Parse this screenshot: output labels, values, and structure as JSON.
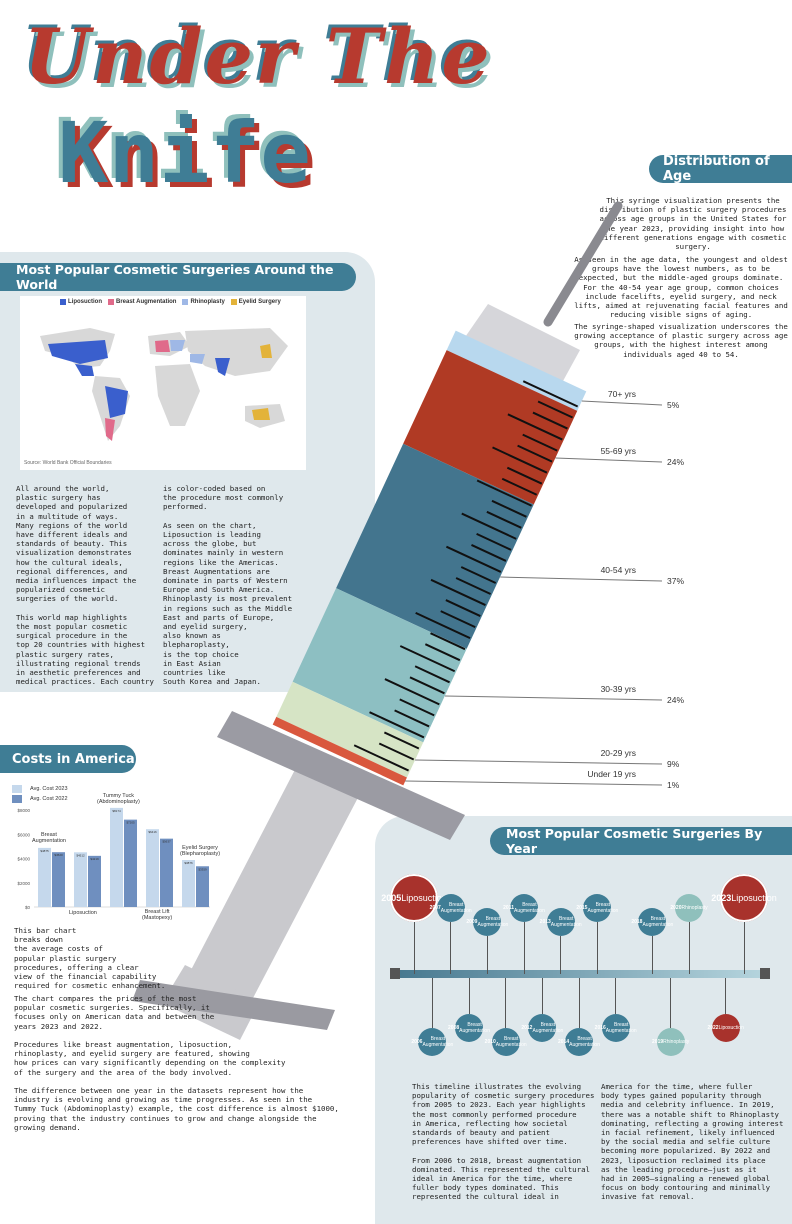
{
  "title": {
    "line1": "Under The",
    "line2": "Knife"
  },
  "colors": {
    "teal": "#3f7d95",
    "red": "#b73a2f",
    "mint": "#8fc0bc",
    "panel": "#dfe8ec"
  },
  "age": {
    "header": "Distribution of Age",
    "desc1": "This syringe visualization presents the distribution of plastic surgery procedures across age groups in the United States for the year 2023, providing insight into how different generations engage with cosmetic surgery.",
    "desc2": "As seen in the age data, the youngest and oldest groups have the lowest numbers, as to be expected, but the middle-aged groups dominate. For the 40-54 year age group, common choices include facelifts, eyelid surgery, and neck lifts, aimed at rejuvenating facial features and reducing visible signs of aging.",
    "desc3": "The syringe-shaped visualization underscores the growing acceptance of plastic surgery across age groups, with the highest interest among individuals aged 40 to 54.",
    "groups": [
      {
        "label": "70+ yrs",
        "pct": "5%",
        "value": 5,
        "color": "#b8d8ee"
      },
      {
        "label": "55-69 yrs",
        "pct": "24%",
        "value": 24,
        "color": "#b03a24"
      },
      {
        "label": "40-54 yrs",
        "pct": "37%",
        "value": 37,
        "color": "#43758e"
      },
      {
        "label": "30-39 yrs",
        "pct": "24%",
        "value": 24,
        "color": "#8dbfc2"
      },
      {
        "label": "20-29 yrs",
        "pct": "9%",
        "value": 9,
        "color": "#d6e4c5"
      },
      {
        "label": "Under 19 yrs",
        "pct": "1%",
        "value": 1,
        "color": "#d9583e"
      }
    ]
  },
  "world": {
    "header": "Most Popular Cosmetic Surgeries Around the World",
    "legend": [
      {
        "label": "Liposuction",
        "color": "#3a5fcd"
      },
      {
        "label": "Breast Augmentation",
        "color": "#e06a8a"
      },
      {
        "label": "Rhinoplasty",
        "color": "#9fb8e6"
      },
      {
        "label": "Eyelid Surgery",
        "color": "#e3b33a"
      }
    ],
    "source": "Source: World Bank Official Boundaries",
    "col1": "All around the world,\nplastic surgery has\ndeveloped and popularized\nin a multitude of ways.\nMany regions of the world\nhave different ideals and\nstandards of beauty. This\nvisualization demonstrates\nhow the cultural ideals,\nregional differences, and\nmedia influences impact the\npopularized cosmetic\nsurgeries of the world.\n\nThis world map highlights\nthe most popular cosmetic\nsurgical procedure in the\ntop 20 countries with highest\nplastic surgery rates,\nillustrating regional trends\nin aesthetic preferences and\nmedical practices. Each country",
    "col2": "is color-coded based on\nthe procedure most commonly\nperformed.\n\nAs seen on the chart,\nLiposuction is leading\nacross the globe, but\ndominates mainly in western\nregions like the Americas.\nBreast Augmentations are\ndominate in parts of Western\nEurope and South America.\nRhinoplasty is most prevalent\nin regions such as the Middle\nEast and parts of Europe,\nand eyelid surgery,\nalso known as\nblepharoplasty,\nis the top choice\nin East Asian\ncountries like\nSouth Korea and Japan."
  },
  "costs": {
    "header": "Costs in America",
    "legend": [
      {
        "label": "Avg. Cost 2023",
        "color": "#c5d8ec"
      },
      {
        "label": "Avg. Cost 2022",
        "color": "#6f8fbf"
      }
    ],
    "yticks": [
      "$0",
      "$2000",
      "$4000",
      "$6000",
      "$8000"
    ],
    "callouts": {
      "breast_aug": "Breast\nAugmentation",
      "lipo": "Liposuction",
      "tummy": "Tummy Tuck\n(Abdominoplasty)",
      "lift": "Breast Lift\n(Mastopexy)",
      "eyelid": "Eyelid Surgery\n(Blepharoplasty)"
    },
    "text1": "This bar chart\nbreaks down\nthe average costs of\npopular plastic surgery\nprocedures, offering a clear\nview of the financial capability\nrequired for cosmetic enhancement.",
    "text2": "The chart compares the prices of the most\npopular cosmetic surgeries. Specifically, it\nfocuses only on American data and between the\nyears 2023 and 2022.\n\nProcedures like breast augmentation, liposuction,\nrhinoplasty, and eyelid surgery are featured, showing\nhow prices can vary significantly depending on the complexity\nof the surgery and the area of the body involved.\n\nThe difference between one year in the datasets represent how the\nindustry is evolving and growing as time progresses. As seen in the\nTummy Tuck (Abdominoplasty) example, the cost difference is almost $1000,\nproving that the industry continues to grow and change alongside the\ngrowing demand."
  },
  "chart_data": {
    "type": "bar",
    "categories": [
      "Breast Augmentation",
      "Liposuction",
      "Tummy Tuck (Abdominoplasty)",
      "Breast Lift (Mastopexy)",
      "Eyelid Surgery (Blepharoplasty)"
    ],
    "series": [
      {
        "name": "Avg. Cost 2023",
        "values": [
          4875,
          4512,
          8174,
          6416,
          3876
        ]
      },
      {
        "name": "Avg. Cost 2022",
        "values": [
          4520,
          4219,
          7205,
          5637,
          3359
        ]
      }
    ],
    "ylim": [
      0,
      8000
    ],
    "yticks": [
      0,
      2000,
      4000,
      6000,
      8000
    ]
  },
  "timeline": {
    "header": "Most Popular Cosmetic Surgeries By Year",
    "top": [
      {
        "year": "2005",
        "proc": "Liposuction",
        "kind": "big-red"
      },
      {
        "year": "2007",
        "proc": "Breast Augmentation",
        "kind": "teal"
      },
      {
        "year": "2009",
        "proc": "Breast Augmentation",
        "kind": "teal"
      },
      {
        "year": "2011",
        "proc": "Breast Augmentation",
        "kind": "teal"
      },
      {
        "year": "2013",
        "proc": "Breast Augmentation",
        "kind": "teal"
      },
      {
        "year": "2015",
        "proc": "Breast Augmentation",
        "kind": "teal"
      },
      {
        "year": "2018",
        "proc": "Breast Augmentation",
        "kind": "teal"
      },
      {
        "year": "2020",
        "proc": "Rhinoplasty",
        "kind": "mint"
      },
      {
        "year": "2023",
        "proc": "Liposuction",
        "kind": "big-red"
      }
    ],
    "bottom": [
      {
        "year": "2006",
        "proc": "Breast Augmentation",
        "kind": "teal"
      },
      {
        "year": "2008",
        "proc": "Breast Augmentation",
        "kind": "teal"
      },
      {
        "year": "2010",
        "proc": "Breast Augmentation",
        "kind": "teal"
      },
      {
        "year": "2012",
        "proc": "Breast Augmentation",
        "kind": "teal"
      },
      {
        "year": "2014",
        "proc": "Breast Augmentation",
        "kind": "teal"
      },
      {
        "year": "2016",
        "proc": "Breast Augmentation",
        "kind": "teal"
      },
      {
        "year": "2019",
        "proc": "Rhinoplasty",
        "kind": "mint"
      },
      {
        "year": "2022",
        "proc": "Liposuction",
        "kind": "red"
      }
    ],
    "col1": "This timeline illustrates the evolving\npopularity of cosmetic surgery procedures\nfrom 2005 to 2023. Each year highlights\nthe most commonly performed procedure\nin America, reflecting how societal\nstandards of beauty and patient\npreferences have shifted over time.\n\nFrom 2006 to 2018, breast augmentation\ndominated. This represented the cultural\nideal in America for the time, where\nfuller body types dominated. This\nrepresented the cultural ideal in",
    "col2": "America for the time, where fuller\nbody types gained popularity through\nmedia and celebrity influence. In 2019,\nthere was a notable shift to Rhinoplasty\ndominating, reflecting a growing interest\nin facial refinement, likely influenced\nby the social media and selfie culture\nbecoming more popularized. By 2022 and\n2023, liposuction reclaimed its place\nas the leading procedure—just as it\nhad in 2005—signaling a renewed global\nfocus on body contouring and minimally\ninvasive fat removal."
  }
}
